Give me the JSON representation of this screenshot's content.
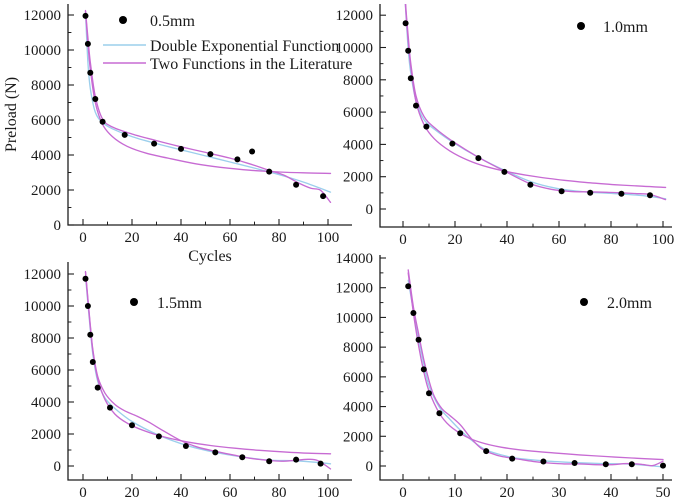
{
  "figure": {
    "ylabel": "Preload (N)",
    "xlabel": "Cycles",
    "legend_labels": {
      "double_exponential": "Double Exponential Function",
      "literature": "Two Functions in the Literature"
    },
    "colors": {
      "scatter": "#000000",
      "double_exponential": "#9ccfec",
      "literature": "#c76bd3",
      "axis": "#1f1f1f"
    }
  },
  "chart_data": [
    {
      "type": "scatter",
      "series_label": "0.5mm",
      "xlabel": "Cycles",
      "ylabel": "Preload (N)",
      "x_ticks": [
        0,
        20,
        40,
        60,
        80,
        100
      ],
      "y_ticks": [
        0,
        2000,
        4000,
        6000,
        8000,
        10000,
        12000
      ],
      "xlim": [
        -6,
        110
      ],
      "ylim": [
        0,
        12600
      ],
      "scatter": {
        "x": [
          1,
          2,
          3,
          5,
          8,
          17,
          29,
          40,
          52,
          63,
          69,
          76,
          87,
          98
        ],
        "y": [
          11950,
          10350,
          8700,
          7200,
          5900,
          5150,
          4650,
          4350,
          4050,
          3750,
          4200,
          3050,
          2300,
          1650
        ]
      },
      "fits": {
        "double_exponential": [
          [
            1,
            12150
          ],
          [
            2,
            9300
          ],
          [
            3,
            7800
          ],
          [
            5,
            6450
          ],
          [
            8,
            5850
          ],
          [
            12,
            5500
          ],
          [
            20,
            5050
          ],
          [
            30,
            4650
          ],
          [
            40,
            4300
          ],
          [
            50,
            3950
          ],
          [
            60,
            3600
          ],
          [
            70,
            3250
          ],
          [
            80,
            2880
          ],
          [
            90,
            2450
          ],
          [
            101,
            1880
          ]
        ],
        "literature_1": [
          [
            1,
            12200
          ],
          [
            2,
            10400
          ],
          [
            3,
            8900
          ],
          [
            5,
            7000
          ],
          [
            8,
            5750
          ],
          [
            12,
            5050
          ],
          [
            18,
            4500
          ],
          [
            26,
            4100
          ],
          [
            36,
            3780
          ],
          [
            46,
            3500
          ],
          [
            56,
            3300
          ],
          [
            68,
            3130
          ],
          [
            80,
            3030
          ],
          [
            90,
            2980
          ],
          [
            101,
            2950
          ]
        ],
        "literature_2": [
          [
            1,
            12250
          ],
          [
            2,
            10700
          ],
          [
            3,
            9300
          ],
          [
            5,
            7350
          ],
          [
            8,
            6050
          ],
          [
            12,
            5600
          ],
          [
            20,
            5200
          ],
          [
            30,
            4820
          ],
          [
            40,
            4470
          ],
          [
            50,
            4150
          ],
          [
            60,
            3820
          ],
          [
            68,
            3500
          ],
          [
            76,
            3120
          ],
          [
            82,
            2850
          ],
          [
            88,
            2400
          ],
          [
            93,
            2100
          ],
          [
            97,
            1980
          ],
          [
            101,
            1300
          ]
        ]
      }
    },
    {
      "type": "scatter",
      "series_label": "1.0mm",
      "x_ticks": [
        0,
        20,
        40,
        60,
        80,
        100
      ],
      "y_ticks": [
        0,
        2000,
        4000,
        6000,
        8000,
        10000,
        12000
      ],
      "xlim": [
        -9,
        104
      ],
      "ylim": [
        -1100,
        12700
      ],
      "scatter": {
        "x": [
          1,
          2,
          3,
          5,
          9,
          19,
          29,
          39,
          49,
          61,
          72,
          84,
          95
        ],
        "y": [
          11500,
          9800,
          8100,
          6400,
          5100,
          4050,
          3150,
          2300,
          1500,
          1100,
          1000,
          950,
          850
        ]
      },
      "fits": {
        "double_exponential": [
          [
            0.7,
            13200
          ],
          [
            2,
            9900
          ],
          [
            3,
            8400
          ],
          [
            5,
            6700
          ],
          [
            8,
            5550
          ],
          [
            12,
            4950
          ],
          [
            19,
            4150
          ],
          [
            29,
            3200
          ],
          [
            39,
            2400
          ],
          [
            49,
            1700
          ],
          [
            59,
            1280
          ],
          [
            70,
            1060
          ],
          [
            82,
            950
          ],
          [
            92,
            830
          ],
          [
            101,
            640
          ]
        ],
        "literature_1": [
          [
            0.5,
            14500
          ],
          [
            1,
            12500
          ],
          [
            2,
            10400
          ],
          [
            3,
            8800
          ],
          [
            5,
            6650
          ],
          [
            8,
            5250
          ],
          [
            12,
            4350
          ],
          [
            18,
            3600
          ],
          [
            25,
            3020
          ],
          [
            33,
            2580
          ],
          [
            42,
            2250
          ],
          [
            52,
            1980
          ],
          [
            62,
            1780
          ],
          [
            72,
            1620
          ],
          [
            82,
            1500
          ],
          [
            92,
            1410
          ],
          [
            101,
            1340
          ]
        ],
        "literature_2": [
          [
            0.6,
            14200
          ],
          [
            1,
            12700
          ],
          [
            2,
            10700
          ],
          [
            3,
            9000
          ],
          [
            5,
            7000
          ],
          [
            8,
            5750
          ],
          [
            12,
            5050
          ],
          [
            19,
            4200
          ],
          [
            29,
            3200
          ],
          [
            39,
            2350
          ],
          [
            49,
            1560
          ],
          [
            57,
            1220
          ],
          [
            65,
            1080
          ],
          [
            73,
            1060
          ],
          [
            81,
            1020
          ],
          [
            89,
            960
          ],
          [
            95,
            900
          ],
          [
            101,
            580
          ]
        ]
      }
    },
    {
      "type": "scatter",
      "series_label": "1.5mm",
      "x_ticks": [
        0,
        20,
        40,
        60,
        80,
        100
      ],
      "y_ticks": [
        0,
        2000,
        4000,
        6000,
        8000,
        10000,
        12000
      ],
      "xlim": [
        -6,
        110
      ],
      "ylim": [
        -870,
        12750
      ],
      "scatter": {
        "x": [
          1,
          2,
          3,
          4,
          6,
          11,
          20,
          31,
          42,
          54,
          65,
          76,
          87,
          97
        ],
        "y": [
          11700,
          10000,
          8200,
          6500,
          4900,
          3650,
          2550,
          1850,
          1250,
          850,
          550,
          300,
          400,
          150
        ]
      },
      "fits": {
        "double_exponential": [
          [
            1,
            11900
          ],
          [
            2,
            10150
          ],
          [
            3,
            8500
          ],
          [
            4,
            7000
          ],
          [
            6,
            5300
          ],
          [
            9,
            4250
          ],
          [
            13,
            3600
          ],
          [
            20,
            2780
          ],
          [
            31,
            1920
          ],
          [
            42,
            1300
          ],
          [
            54,
            850
          ],
          [
            65,
            560
          ],
          [
            76,
            360
          ],
          [
            86,
            330
          ],
          [
            95,
            230
          ],
          [
            101,
            140
          ]
        ],
        "literature_1": [
          [
            1,
            12100
          ],
          [
            2,
            10350
          ],
          [
            3,
            8700
          ],
          [
            4,
            7200
          ],
          [
            6,
            5450
          ],
          [
            9,
            4150
          ],
          [
            13,
            3250
          ],
          [
            18,
            2680
          ],
          [
            25,
            2200
          ],
          [
            33,
            1820
          ],
          [
            42,
            1520
          ],
          [
            52,
            1280
          ],
          [
            62,
            1110
          ],
          [
            72,
            980
          ],
          [
            82,
            880
          ],
          [
            92,
            800
          ],
          [
            101,
            760
          ]
        ],
        "literature_2": [
          [
            1,
            12150
          ],
          [
            2,
            10450
          ],
          [
            3,
            8800
          ],
          [
            4,
            7300
          ],
          [
            6,
            5600
          ],
          [
            9,
            4550
          ],
          [
            13,
            3850
          ],
          [
            17,
            3450
          ],
          [
            22,
            3120
          ],
          [
            27,
            2730
          ],
          [
            33,
            2180
          ],
          [
            40,
            1580
          ],
          [
            47,
            1170
          ],
          [
            54,
            920
          ],
          [
            61,
            700
          ],
          [
            68,
            490
          ],
          [
            75,
            360
          ],
          [
            81,
            300
          ],
          [
            87,
            360
          ],
          [
            92,
            420
          ],
          [
            96,
            330
          ],
          [
            101,
            -180
          ]
        ]
      }
    },
    {
      "type": "scatter",
      "series_label": "2.0mm",
      "x_ticks": [
        0,
        10,
        20,
        30,
        40,
        50
      ],
      "y_ticks": [
        0,
        2000,
        4000,
        6000,
        8000,
        10000,
        12000,
        14000
      ],
      "xlim": [
        -4.5,
        52
      ],
      "ylim": [
        -940,
        14200
      ],
      "scatter": {
        "x": [
          1,
          2,
          3,
          4,
          5,
          7,
          11,
          16,
          21,
          27,
          33,
          39,
          44,
          50
        ],
        "y": [
          12100,
          10300,
          8500,
          6500,
          4900,
          3550,
          2200,
          1000,
          500,
          300,
          200,
          120,
          120,
          30
        ]
      },
      "fits": {
        "double_exponential": [
          [
            1,
            12500
          ],
          [
            2,
            10450
          ],
          [
            3,
            8600
          ],
          [
            4,
            6850
          ],
          [
            5,
            5400
          ],
          [
            7,
            3950
          ],
          [
            9,
            3150
          ],
          [
            11,
            2420
          ],
          [
            13.5,
            1650
          ],
          [
            16,
            1080
          ],
          [
            19,
            740
          ],
          [
            22,
            520
          ],
          [
            27,
            350
          ],
          [
            33,
            230
          ],
          [
            38,
            170
          ],
          [
            44,
            120
          ],
          [
            50,
            -60
          ]
        ],
        "literature_1": [
          [
            1,
            13000
          ],
          [
            2,
            10300
          ],
          [
            3,
            8100
          ],
          [
            4,
            6350
          ],
          [
            5,
            5050
          ],
          [
            7,
            3550
          ],
          [
            9,
            2700
          ],
          [
            12,
            2000
          ],
          [
            15,
            1580
          ],
          [
            19,
            1260
          ],
          [
            24,
            1030
          ],
          [
            29,
            880
          ],
          [
            34,
            750
          ],
          [
            39,
            640
          ],
          [
            44,
            540
          ],
          [
            50,
            430
          ]
        ],
        "literature_2": [
          [
            1,
            13200
          ],
          [
            2,
            10700
          ],
          [
            3,
            8900
          ],
          [
            4,
            7150
          ],
          [
            5,
            5750
          ],
          [
            6,
            4700
          ],
          [
            7.5,
            3850
          ],
          [
            9,
            3400
          ],
          [
            11,
            2780
          ],
          [
            13,
            1900
          ],
          [
            15,
            1200
          ],
          [
            17,
            850
          ],
          [
            19,
            640
          ],
          [
            22,
            470
          ],
          [
            25,
            310
          ],
          [
            28,
            200
          ],
          [
            31,
            140
          ],
          [
            34,
            140
          ],
          [
            37,
            90
          ],
          [
            40,
            90
          ],
          [
            43,
            160
          ],
          [
            46,
            110
          ],
          [
            48,
            30
          ],
          [
            50,
            320
          ]
        ]
      }
    }
  ]
}
